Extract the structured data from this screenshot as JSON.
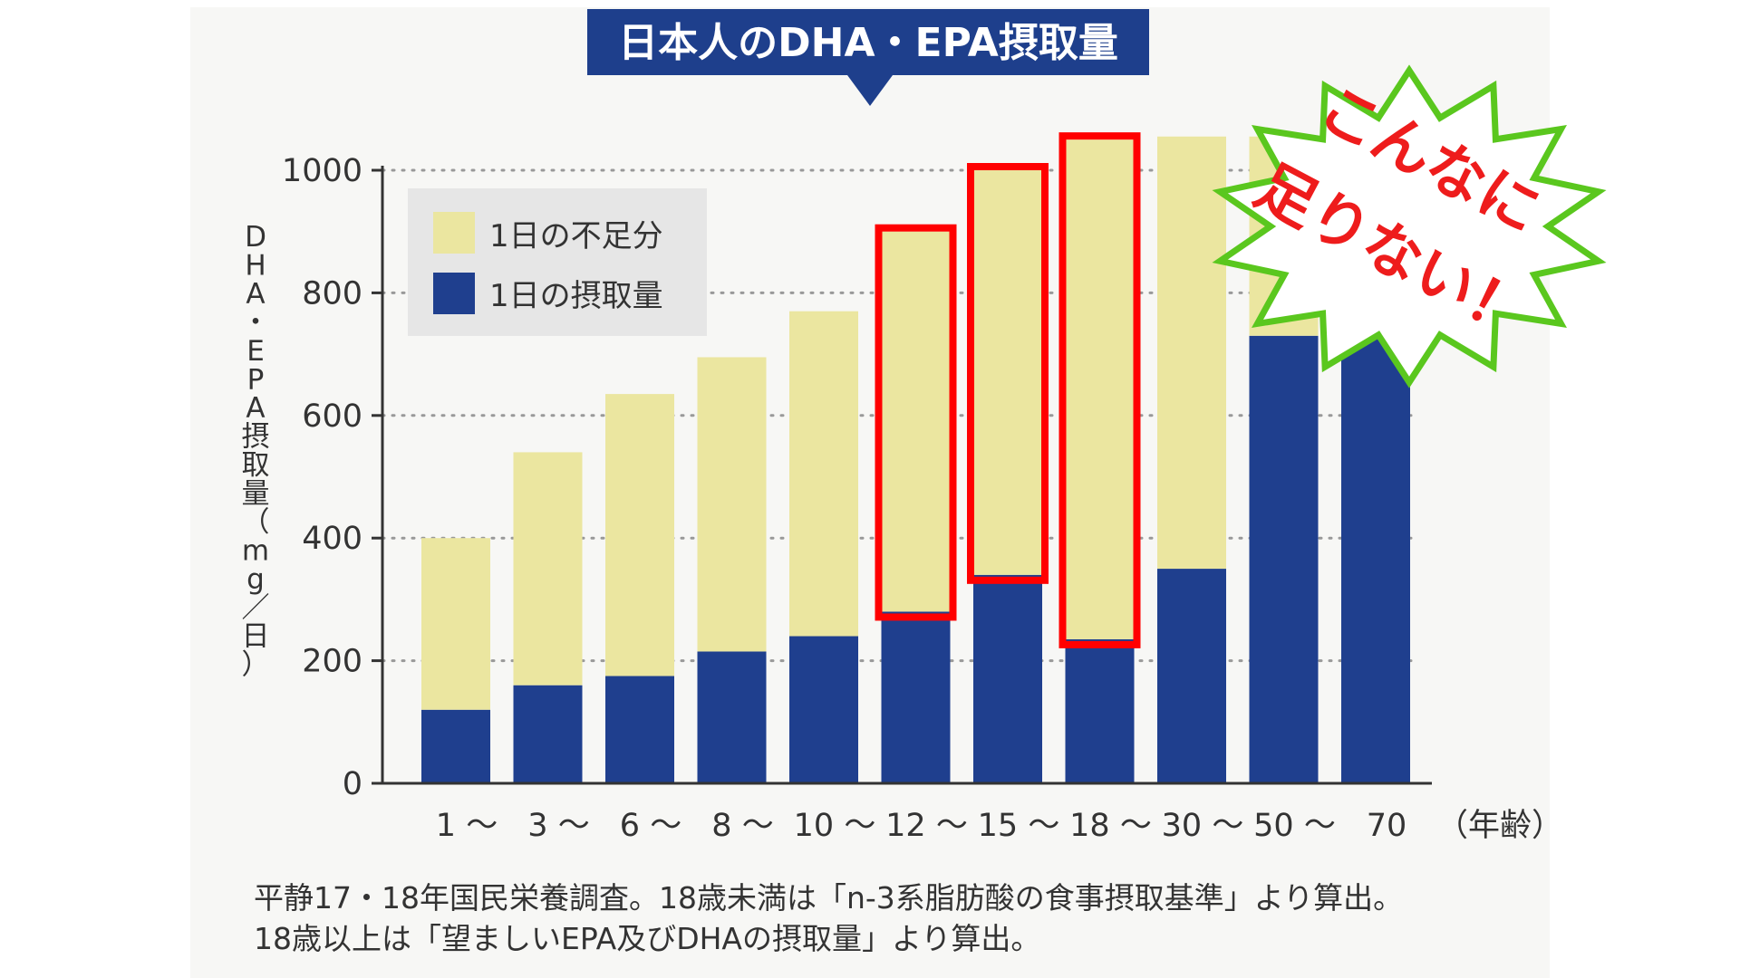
{
  "chart_data": {
    "type": "bar",
    "stacked": true,
    "title": "日本人のDHA・EPA摂取量",
    "ylabel": "DHA・EPA摂取量（mg／日）",
    "xlabel": "（年齢）",
    "categories": [
      "1 〜",
      "3 〜",
      "6 〜",
      "8 〜",
      "10 〜",
      "12 〜",
      "15 〜",
      "18 〜",
      "30 〜",
      "50 〜",
      "70"
    ],
    "ylim": [
      0,
      1000
    ],
    "yticks": [
      0,
      200,
      400,
      600,
      800,
      1000
    ],
    "grid": true,
    "legend_position": "top-left",
    "series": [
      {
        "name": "1日の摂取量",
        "color": "#1f3f8e",
        "values": [
          120,
          160,
          175,
          215,
          240,
          280,
          340,
          235,
          350,
          730,
          730
        ]
      },
      {
        "name": "1日の不足分",
        "color": "#ebe6a0",
        "values": [
          280,
          380,
          460,
          480,
          530,
          620,
          660,
          815,
          705,
          325,
          325
        ]
      }
    ],
    "highlighted_categories": [
      "12 〜",
      "15 〜",
      "18 〜"
    ],
    "callout": {
      "lines": [
        "こんなに",
        "足りない！"
      ],
      "text_color": "#ee1c1c",
      "border_color": "#5ac71e"
    },
    "note_lines": [
      "平静17・18年国民栄養調査。18歳未満は「n-3系脂肪酸の食事摂取基準」より算出。",
      "18歳以上は「望ましいEPA及びDHAの摂取量」より算出。"
    ]
  }
}
